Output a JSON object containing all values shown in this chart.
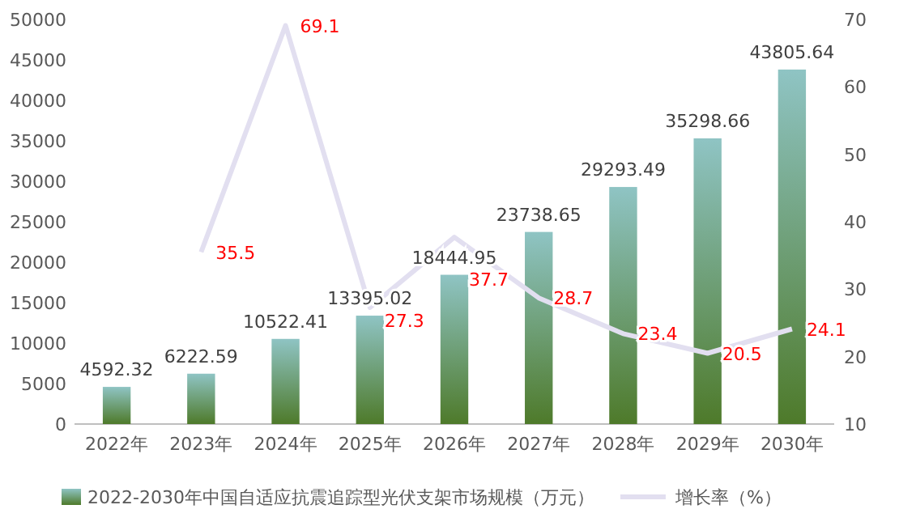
{
  "chart_data": {
    "type": "bar",
    "categories": [
      "2022年",
      "2023年",
      "2024年",
      "2025年",
      "2026年",
      "2027年",
      "2028年",
      "2029年",
      "2030年"
    ],
    "series": [
      {
        "name": "2022-2030年中国自适应抗震追踪型光伏支架市场规模（万元）",
        "color": "#8fc4c4",
        "values": [
          4592.32,
          6222.59,
          10522.41,
          13395.02,
          18444.95,
          23738.65,
          29293.49,
          35298.66,
          43805.64
        ]
      },
      {
        "name": "增长率（%）",
        "type": "line",
        "axis": "y2",
        "color": "#e2dff0",
        "values": [
          null,
          35.5,
          69.1,
          27.3,
          37.7,
          28.7,
          23.4,
          20.5,
          24.1
        ]
      }
    ],
    "ylim": [
      0,
      50000
    ],
    "yticks": [
      0,
      5000,
      10000,
      15000,
      20000,
      25000,
      30000,
      35000,
      40000,
      45000,
      50000
    ],
    "y2lim": [
      10,
      70
    ],
    "y2ticks": [
      10,
      20,
      30,
      40,
      50,
      60,
      70
    ],
    "data_labels": true,
    "legend": "bottom",
    "grid": false,
    "marker": "none"
  }
}
